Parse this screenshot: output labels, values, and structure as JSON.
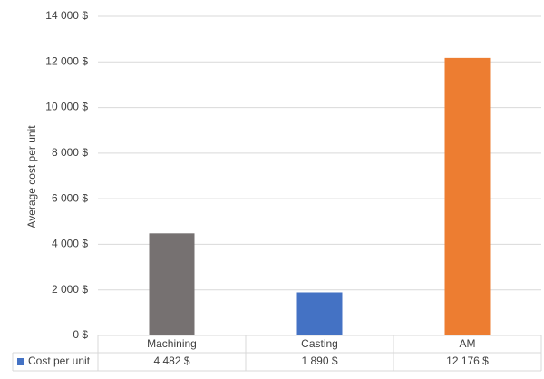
{
  "chart_data": {
    "type": "bar",
    "y_label": "Average cost per unit",
    "categories": [
      "Machining",
      "Casting",
      "AM"
    ],
    "series": [
      {
        "name": "Cost per unit",
        "color": "#4472c4",
        "colors": [
          "#767171",
          "#4472c4",
          "#ed7d31"
        ],
        "values": [
          4482,
          1890,
          12176
        ],
        "value_labels": [
          "4 482 $",
          "1 890 $",
          "12 176 $"
        ]
      }
    ],
    "ylim": [
      0,
      14000
    ],
    "yticks": [
      {
        "value": 0,
        "label": "0 $"
      },
      {
        "value": 2000,
        "label": "2 000 $"
      },
      {
        "value": 4000,
        "label": "4 000 $"
      },
      {
        "value": 6000,
        "label": "6 000 $"
      },
      {
        "value": 8000,
        "label": "8 000 $"
      },
      {
        "value": 10000,
        "label": "10 000 $"
      },
      {
        "value": 12000,
        "label": "12 000 $"
      },
      {
        "value": 14000,
        "label": "14 000 $"
      }
    ],
    "grid": true
  }
}
